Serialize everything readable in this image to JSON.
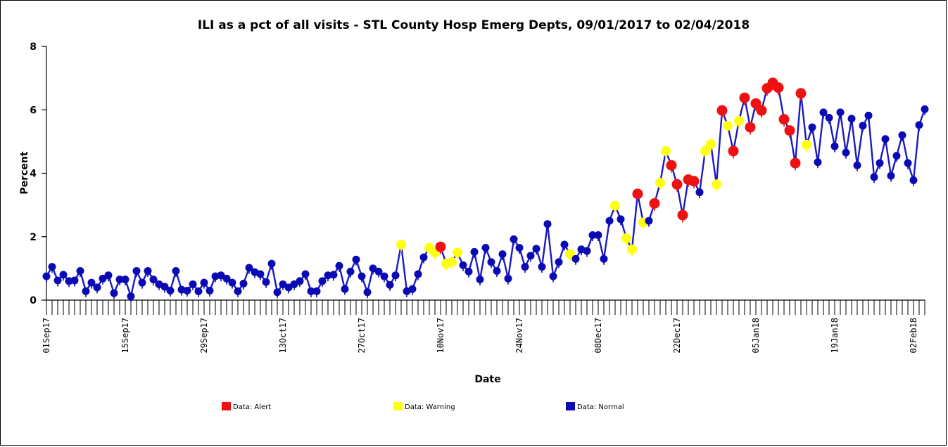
{
  "chart_data": {
    "type": "line",
    "title": "ILI as a pct of all visits - STL County Hosp Emerg Depts, 09/01/2017 to 02/04/2018",
    "xlabel": "Date",
    "ylabel": "Percent",
    "ylim": [
      0,
      8
    ],
    "yticks": [
      "0",
      "2",
      "4",
      "6",
      "8"
    ],
    "x_start": "2017-09-01",
    "x_end": "2018-02-04",
    "xtick_labels": [
      {
        "date": "2017-09-01",
        "label": "01Sep17"
      },
      {
        "date": "2017-09-15",
        "label": "15Sep17"
      },
      {
        "date": "2017-09-29",
        "label": "29Sep17"
      },
      {
        "date": "2017-10-13",
        "label": "13Oct17"
      },
      {
        "date": "2017-10-27",
        "label": "27Oct17"
      },
      {
        "date": "2017-11-10",
        "label": "10Nov17"
      },
      {
        "date": "2017-11-24",
        "label": "24Nov17"
      },
      {
        "date": "2017-12-08",
        "label": "08Dec17"
      },
      {
        "date": "2017-12-22",
        "label": "22Dec17"
      },
      {
        "date": "2018-01-05",
        "label": "05Jan18"
      },
      {
        "date": "2018-01-19",
        "label": "19Jan18"
      },
      {
        "date": "2018-02-02",
        "label": "02Feb18"
      }
    ],
    "grid": false,
    "legend_position": "bottom",
    "legend": [
      {
        "key": "A",
        "label": "Data: Alert",
        "color": "#ee1111"
      },
      {
        "key": "W",
        "label": "Data: Warning",
        "color": "#ffff11"
      },
      {
        "key": "N",
        "label": "Data: Normal",
        "color": "#0a0ab4"
      }
    ],
    "line_color": "#1a1ac0",
    "series": [
      {
        "name": "ILI percent",
        "values": [
          0.75,
          1.05,
          0.62,
          0.8,
          0.6,
          0.62,
          0.92,
          0.28,
          0.55,
          0.4,
          0.68,
          0.78,
          0.22,
          0.65,
          0.65,
          0.12,
          0.92,
          0.55,
          0.92,
          0.65,
          0.5,
          0.42,
          0.3,
          0.92,
          0.33,
          0.3,
          0.5,
          0.28,
          0.55,
          0.3,
          0.75,
          0.78,
          0.68,
          0.55,
          0.28,
          0.52,
          1.02,
          0.88,
          0.82,
          0.57,
          1.15,
          0.25,
          0.5,
          0.4,
          0.5,
          0.6,
          0.82,
          0.28,
          0.28,
          0.6,
          0.78,
          0.8,
          1.08,
          0.35,
          0.9,
          1.28,
          0.75,
          0.25,
          1.0,
          0.9,
          0.75,
          0.48,
          0.78,
          1.75,
          0.28,
          0.35,
          0.82,
          1.35,
          1.65,
          1.5,
          1.68,
          1.15,
          1.2,
          1.5,
          1.1,
          0.9,
          1.52,
          0.65,
          1.65,
          1.2,
          0.92,
          1.45,
          0.68,
          1.92,
          1.65,
          1.05,
          1.4,
          1.62,
          1.05,
          2.4,
          0.75,
          1.2,
          1.75,
          1.45,
          1.3,
          1.6,
          1.55,
          2.05,
          2.05,
          1.3,
          2.5,
          2.98,
          2.55,
          1.95,
          1.6,
          3.35,
          2.45,
          2.5,
          3.05,
          3.7,
          4.7,
          4.25,
          3.65,
          2.68,
          3.8,
          3.75,
          3.4,
          4.7,
          4.92,
          3.65,
          5.98,
          5.5,
          4.7,
          5.65,
          6.38,
          5.45,
          6.2,
          5.98,
          6.68,
          6.85,
          6.7,
          5.7,
          5.35,
          4.32,
          6.52,
          4.9,
          5.45,
          4.35,
          5.92,
          5.75,
          4.85,
          5.92,
          4.65,
          5.72,
          4.25,
          5.5,
          5.82,
          3.88,
          4.32,
          5.08,
          3.92,
          4.55,
          5.2,
          4.32,
          3.78,
          5.52,
          6.02
        ],
        "status": "NNNNNNNNNNNNNNNNNNNNNNNNNNNNNNNNNNNNNNNNNNNNNNNNNNNNNNNNNNNNNNNWNNNNWWAWWWNNNNNNNNNNNNNNNNNNNWNNNNNNNWNWWAWNAWWAAAAANWWWAWAWAAAAAAAAAAAWNNNNNNNNNNNNNNNNNNNNNNNN"
      }
    ]
  }
}
